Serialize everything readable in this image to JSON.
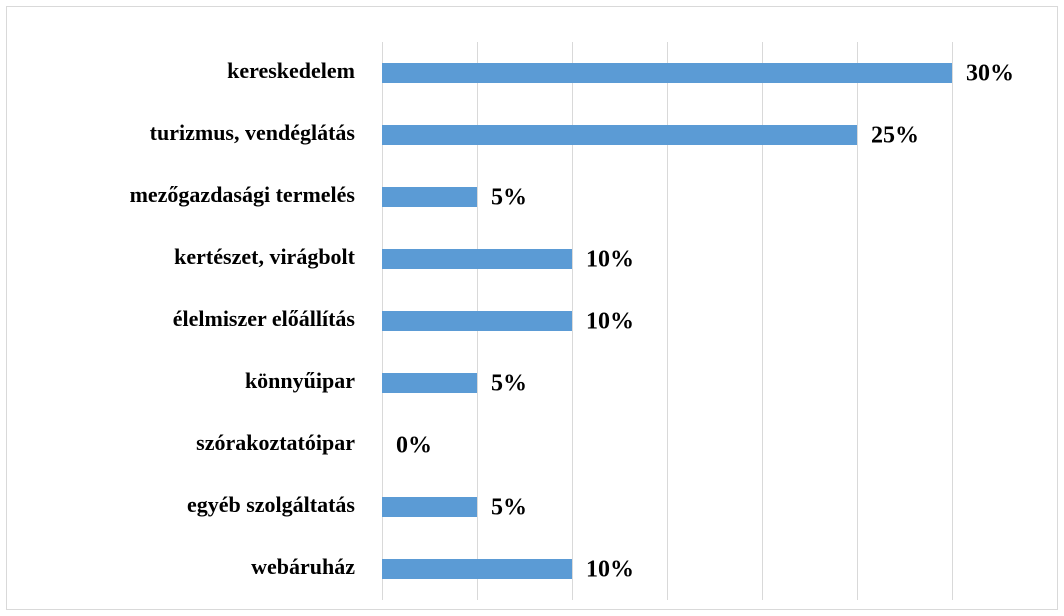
{
  "chart_data": {
    "type": "bar",
    "orientation": "horizontal",
    "categories": [
      "kereskedelem",
      "turizmus, vendéglátás",
      "mezőgazdasági termelés",
      "kertészet, virágbolt",
      "élelmiszer előállítás",
      "könnyűipar",
      "szórakoztatóipar",
      "egyéb szolgáltatás",
      "webáruház"
    ],
    "values": [
      30,
      25,
      5,
      10,
      10,
      5,
      0,
      5,
      10
    ],
    "value_labels": [
      "30%",
      "25%",
      "5%",
      "10%",
      "10%",
      "5%",
      "0%",
      "5%",
      "10%"
    ],
    "color": "#5b9bd5",
    "xlim": [
      0,
      30
    ],
    "xticks": [
      0,
      5,
      10,
      15,
      20,
      25,
      30
    ],
    "grid": true
  }
}
